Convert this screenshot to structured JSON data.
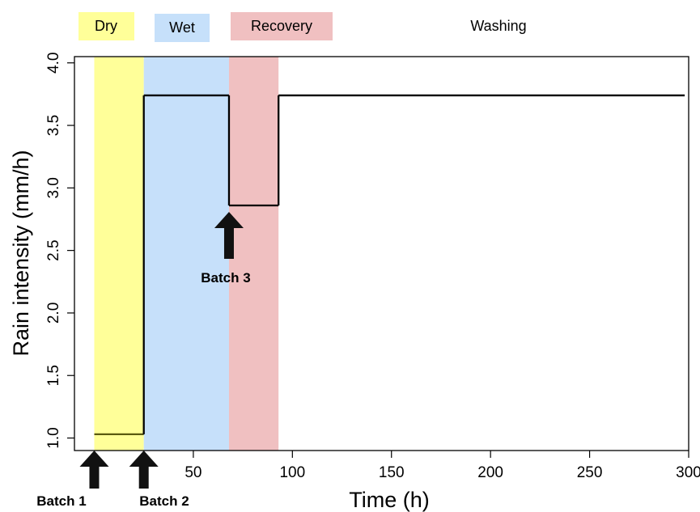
{
  "chart_data": {
    "type": "line",
    "title": "",
    "xlabel": "Time (h)",
    "ylabel": "Rain intensity (mm/h)",
    "xlim": [
      -10,
      300
    ],
    "ylim": [
      0.9,
      4.05
    ],
    "x_ticks": [
      50,
      100,
      150,
      200,
      250,
      300
    ],
    "y_ticks": [
      1.0,
      1.5,
      2.0,
      2.5,
      3.0,
      3.5,
      4.0
    ],
    "x_tick_labels": [
      "50",
      "100",
      "150",
      "200",
      "250",
      "300"
    ],
    "y_tick_labels": [
      "1.0",
      "1.5",
      "2.0",
      "2.5",
      "3.0",
      "3.5",
      "4.0"
    ],
    "grid": false,
    "series": [
      {
        "x": [
          0,
          25,
          25,
          68,
          68,
          93,
          93,
          298
        ],
        "y": [
          1.03,
          1.03,
          3.74,
          3.74,
          2.86,
          2.86,
          3.74,
          3.74
        ]
      }
    ],
    "phases": [
      {
        "label": "Dry",
        "start": 0,
        "end": 25,
        "color": "#ffff99"
      },
      {
        "label": "Wet",
        "start": 25,
        "end": 68,
        "color": "#c6e0fa"
      },
      {
        "label": "Recovery",
        "start": 68,
        "end": 93,
        "color": "#f0c0c1"
      },
      {
        "label": "Washing",
        "start": 93,
        "end": 300,
        "color": "#ffffff"
      }
    ],
    "annotations": [
      {
        "label": "Batch 1",
        "x": 0
      },
      {
        "label": "Batch 2",
        "x": 25
      },
      {
        "label": "Batch 3",
        "x": 68,
        "y": 2.86
      }
    ],
    "line_color": "#000000",
    "dry_line_color": "#5a5a10"
  }
}
